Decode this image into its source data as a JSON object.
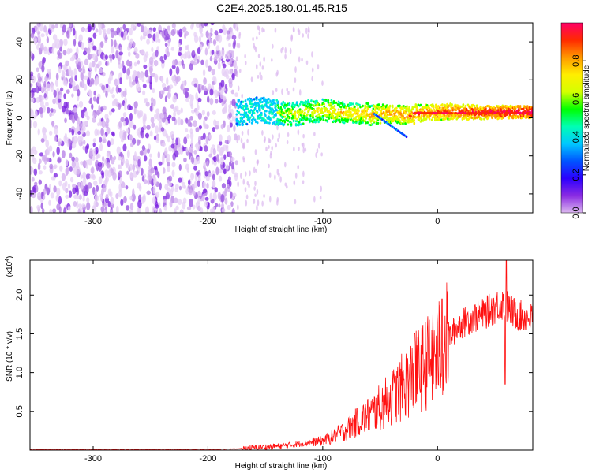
{
  "figure": {
    "title": "C2E4.2025.180.01.45.R15"
  },
  "chart_data": [
    {
      "type": "heatmap",
      "xlabel": "Height of straight line (km)",
      "ylabel": "Frequency (Hz)",
      "xlim": [
        -355,
        83
      ],
      "ylim": [
        -50,
        50
      ],
      "xticks": [
        "-300",
        "-200",
        "-100",
        "0"
      ],
      "yticks": [
        "-40",
        "-20",
        "0",
        "20",
        "40"
      ],
      "colorbar": {
        "label": "Normalized spectral amplitude",
        "range": [
          0,
          1
        ],
        "ticks": [
          "0.0",
          "0.2",
          "0.4",
          "0.6",
          "0.8"
        ],
        "colors": [
          "#dcb8f0",
          "#8a2be2",
          "#2b00ff",
          "#0055ff",
          "#00c8ff",
          "#00ffb4",
          "#00ff00",
          "#d4ff00",
          "#ffee00",
          "#ff9900",
          "#ff2a00",
          "#ff0066"
        ]
      },
      "features": {
        "noise_region_km": [
          -355,
          -175
        ],
        "noise_band_hz": [
          -50,
          50
        ],
        "signal_onset_km": -175,
        "signal_band_center_hz": 3,
        "signal_band_width_hz_at_onset": 14,
        "signal_band_width_hz_at_end": 6,
        "strong_line_start_km": -20,
        "weak_branch_end": {
          "km": -27,
          "hz": -10
        }
      }
    },
    {
      "type": "line",
      "xlabel": "Height of straight line (km)",
      "ylabel": "SNR (10 * v/v)",
      "scale_label": "(x10",
      "scale_exponent": "4",
      "xlim": [
        -355,
        83
      ],
      "ylim": [
        0,
        2.45
      ],
      "xticks": [
        "-300",
        "-200",
        "-100",
        "0"
      ],
      "yticks": [
        "0.5",
        "1.0",
        "1.5",
        "2.0"
      ],
      "color": "#ff0000",
      "series": [
        {
          "x": [
            -355,
            -320,
            -280,
            -240,
            -200,
            -175,
            -160,
            -140,
            -120,
            -100,
            -90,
            -80,
            -70,
            -60,
            -50,
            -40,
            -30,
            -20,
            -15,
            -10,
            -5,
            0,
            5,
            10,
            15,
            20,
            25,
            30,
            35,
            40,
            45,
            50,
            55,
            60,
            65,
            70,
            75,
            80,
            83
          ],
          "y": [
            0.01,
            0.01,
            0.01,
            0.01,
            0.01,
            0.015,
            0.03,
            0.05,
            0.08,
            0.12,
            0.18,
            0.26,
            0.36,
            0.45,
            0.55,
            0.68,
            0.82,
            0.98,
            1.05,
            1.12,
            1.18,
            1.25,
            1.35,
            1.45,
            1.55,
            1.62,
            1.66,
            1.7,
            1.73,
            1.75,
            1.8,
            1.84,
            1.9,
            1.86,
            1.78,
            1.74,
            1.72,
            1.7,
            1.7
          ]
        }
      ],
      "peaks": [
        {
          "x": 60,
          "y": 2.45
        },
        {
          "x": 59,
          "y": 0.85
        },
        {
          "x": -20,
          "y": 1.5
        },
        {
          "x": 4,
          "y": 1.95
        }
      ]
    }
  ]
}
